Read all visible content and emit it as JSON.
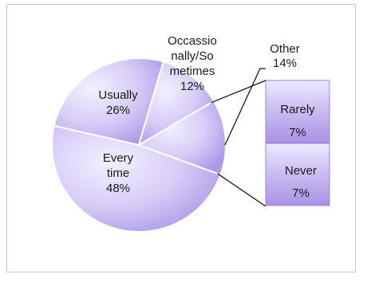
{
  "chart_data": {
    "type": "bar-of-pie",
    "title": "",
    "pie": {
      "slices": [
        {
          "name": "Every time",
          "label_lines": [
            "Every",
            "time",
            "48%"
          ],
          "value": 48
        },
        {
          "name": "Usually",
          "label_lines": [
            "Usually",
            "26%"
          ],
          "value": 26
        },
        {
          "name": "Occassionally/Sometimes",
          "label_lines": [
            "Occassio",
            "nally/So",
            "metimes",
            "12%"
          ],
          "value": 12
        },
        {
          "name": "Other",
          "label_lines": [
            "Other",
            "14%"
          ],
          "value": 14
        }
      ]
    },
    "bar": {
      "segments": [
        {
          "name": "Rarely",
          "label_lines": [
            "Rarely",
            "7%"
          ],
          "value": 7
        },
        {
          "name": "Never",
          "label_lines": [
            "Never",
            "7%"
          ],
          "value": 7
        }
      ]
    },
    "colors": {
      "fill_light": "#eeeaff",
      "fill_mid": "#c9bdf3",
      "fill_dark": "#a794e6",
      "edge": "#ffffff",
      "text": "#1a1a1a",
      "connector": "#1a1a1a",
      "frame_border": "#c8c8c8"
    }
  }
}
